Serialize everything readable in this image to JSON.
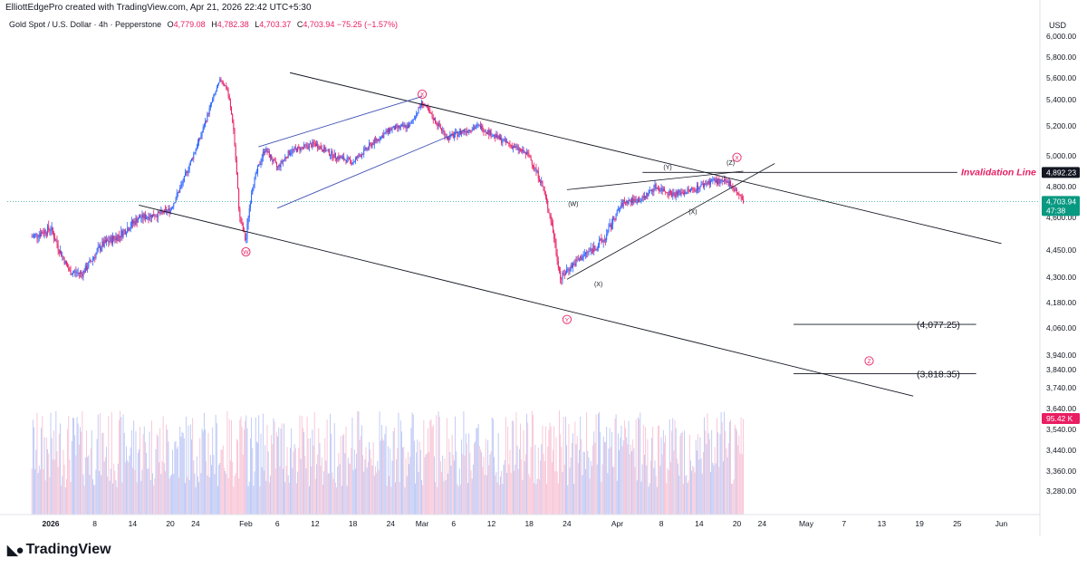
{
  "header": {
    "attribution": "ElliottEdgePro created with TradingView.com, Apr 21, 2026 22:42 UTC+5:30"
  },
  "legend": {
    "symbol": "Gold Spot / U.S. Dollar · 4h · Pepperstone",
    "open_label": "O",
    "open": "4,779.08",
    "high_label": "H",
    "high": "4,782.38",
    "low_label": "L",
    "low": "4,703.37",
    "close_label": "C",
    "close": "4,703.94",
    "change": "−75.25 (−1.57%)"
  },
  "footer": {
    "brand": "TradingView",
    "brand_icon": "tradingview-logo-icon"
  },
  "colors": {
    "up": "#2962ff",
    "down": "#e91e63",
    "vol_up": "#bbc6f5",
    "vol_down": "#f8c2d4",
    "accent": "#e91e63",
    "current": "#089981"
  },
  "chart_data": {
    "type": "candlestick",
    "currency": "USD",
    "y_range": [
      3240,
      6120
    ],
    "y_ticks": [
      "6,000.00",
      "5,800.00",
      "5,600.00",
      "5,400.00",
      "5,200.00",
      "5,000.00",
      "4,800.00",
      "4,600.00",
      "4,450.00",
      "4,300.00",
      "4,180.00",
      "4,060.00",
      "3,940.00",
      "3,840.00",
      "3,740.00",
      "3,640.00",
      "3,540.00",
      "3,440.00",
      "3,360.00",
      "3,280.00"
    ],
    "x_ticks": [
      "2026",
      "8",
      "14",
      "20",
      "24",
      "Feb",
      "6",
      "12",
      "18",
      "24",
      "Mar",
      "6",
      "12",
      "18",
      "24",
      "Apr",
      "8",
      "14",
      "20",
      "24",
      "May",
      "7",
      "13",
      "19",
      "25",
      "Jun"
    ],
    "x_range": [
      "2026-01-01",
      "2026-06-01"
    ],
    "price_path": [
      [
        "2025-12-29",
        4510
      ],
      [
        "2026-01-01",
        4550
      ],
      [
        "2026-01-04",
        4330
      ],
      [
        "2026-01-06",
        4320
      ],
      [
        "2026-01-09",
        4470
      ],
      [
        "2026-01-12",
        4520
      ],
      [
        "2026-01-15",
        4600
      ],
      [
        "2026-01-18",
        4620
      ],
      [
        "2026-01-20",
        4650
      ],
      [
        "2026-01-22",
        4830
      ],
      [
        "2026-01-25",
        5150
      ],
      [
        "2026-01-28",
        5590
      ],
      [
        "2026-01-29",
        5500
      ],
      [
        "2026-01-30",
        5200
      ],
      [
        "2026-01-31",
        4600
      ],
      [
        "2026-02-01",
        4490
      ],
      [
        "2026-02-02",
        4800
      ],
      [
        "2026-02-04",
        5050
      ],
      [
        "2026-02-06",
        4920
      ],
      [
        "2026-02-08",
        5030
      ],
      [
        "2026-02-12",
        5080
      ],
      [
        "2026-02-15",
        5000
      ],
      [
        "2026-02-18",
        4960
      ],
      [
        "2026-02-21",
        5080
      ],
      [
        "2026-02-24",
        5180
      ],
      [
        "2026-02-27",
        5200
      ],
      [
        "2026-03-01",
        5380
      ],
      [
        "2026-03-03",
        5240
      ],
      [
        "2026-03-05",
        5120
      ],
      [
        "2026-03-08",
        5170
      ],
      [
        "2026-03-10",
        5200
      ],
      [
        "2026-03-13",
        5120
      ],
      [
        "2026-03-16",
        5050
      ],
      [
        "2026-03-18",
        5000
      ],
      [
        "2026-03-20",
        4820
      ],
      [
        "2026-03-22",
        4500
      ],
      [
        "2026-03-23",
        4290
      ],
      [
        "2026-03-24",
        4340
      ],
      [
        "2026-03-27",
        4430
      ],
      [
        "2026-03-30",
        4500
      ],
      [
        "2026-04-02",
        4700
      ],
      [
        "2026-04-05",
        4720
      ],
      [
        "2026-04-07",
        4800
      ],
      [
        "2026-04-10",
        4750
      ],
      [
        "2026-04-13",
        4780
      ],
      [
        "2026-04-16",
        4840
      ],
      [
        "2026-04-19",
        4820
      ],
      [
        "2026-04-21",
        4704
      ]
    ],
    "volume_label": "95.42 K",
    "current_price": "4,703.94",
    "countdown": "47:38",
    "invalidation_price": "4,892.23",
    "annotations": [
      {
        "text": "Invalidation Line",
        "type": "label"
      },
      {
        "text": "(4,077.25)",
        "type": "target"
      },
      {
        "text": "(3,818.35)",
        "type": "target"
      }
    ],
    "wave_labels": [
      {
        "text": "W",
        "style": "circle",
        "date": "2026-02-01",
        "price": 4440
      },
      {
        "text": "X",
        "style": "circle",
        "date": "2026-03-01",
        "price": 5450
      },
      {
        "text": "Y",
        "style": "circle",
        "date": "2026-03-24",
        "price": 4100
      },
      {
        "text": "X",
        "style": "circle",
        "date": "2026-04-20",
        "price": 4990
      },
      {
        "text": "Z",
        "style": "circle",
        "date": "2026-05-11",
        "price": 3900
      },
      {
        "text": "(W)",
        "style": "plain",
        "date": "2026-03-25",
        "price": 4690
      },
      {
        "text": "(X)",
        "style": "plain",
        "date": "2026-03-29",
        "price": 4270
      },
      {
        "text": "(Y)",
        "style": "plain",
        "date": "2026-04-09",
        "price": 4930
      },
      {
        "text": "(X)",
        "style": "plain",
        "date": "2026-04-13",
        "price": 4640
      },
      {
        "text": "(Z)",
        "style": "plain",
        "date": "2026-04-19",
        "price": 4960
      }
    ]
  }
}
